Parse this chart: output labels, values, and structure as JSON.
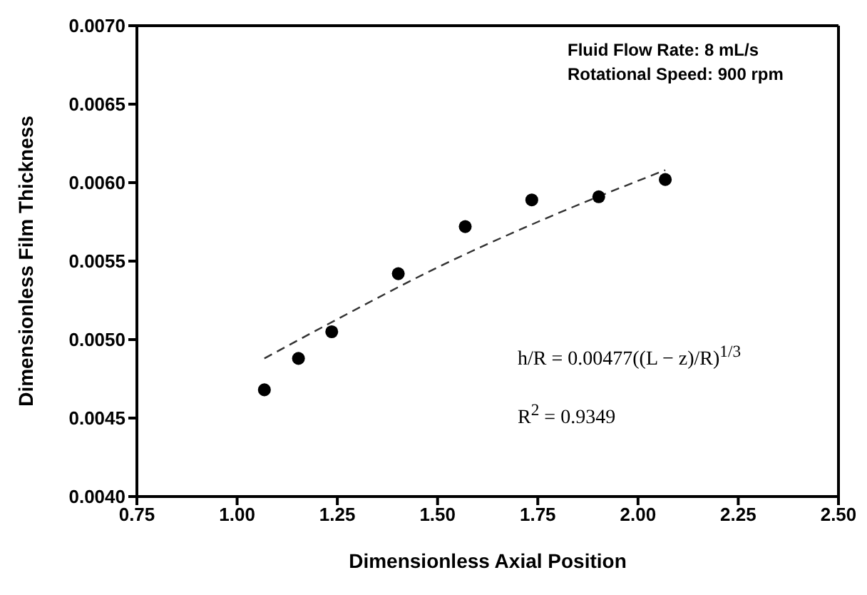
{
  "chart_data": {
    "type": "scatter",
    "xlabel": "Dimensionless Axial Position",
    "ylabel": "Dimensionless Film Thickness",
    "xlim": [
      0.75,
      2.5
    ],
    "xticks": [
      {
        "value": 0.75,
        "label": "0.75"
      },
      {
        "value": 1,
        "label": "1.00"
      },
      {
        "value": 1.25,
        "label": "1.25"
      },
      {
        "value": 1.5,
        "label": "1.50"
      },
      {
        "value": 1.75,
        "label": "1.75"
      },
      {
        "value": 2,
        "label": "2.00"
      },
      {
        "value": 2.25,
        "label": "2.25"
      },
      {
        "value": 2.5,
        "label": "2.50"
      }
    ],
    "ylim": [
      0.004,
      0.007
    ],
    "yticks": [
      {
        "value": 0.004,
        "label": "0.0040"
      },
      {
        "value": 0.0045,
        "label": "0.0045"
      },
      {
        "value": 0.005,
        "label": "0.0050"
      },
      {
        "value": 0.0055,
        "label": "0.0055"
      },
      {
        "value": 0.006,
        "label": "0.0060"
      },
      {
        "value": 0.0065,
        "label": "0.0065"
      },
      {
        "value": 0.007,
        "label": "0.0070"
      }
    ],
    "grid": false,
    "legend": false,
    "marker": "circle",
    "series": [
      {
        "color": "#000000",
        "x": [
          1.068,
          1.153,
          1.236,
          1.402,
          1.569,
          1.735,
          1.902,
          2.068
        ],
        "values": [
          0.00468,
          0.00488,
          0.00505,
          0.00542,
          0.00572,
          0.00589,
          0.00591,
          0.00602
        ]
      },
      {
        "type": "line",
        "color": "#333333",
        "line_style": "dashed",
        "marker": "none",
        "x": [
          1.068,
          1.25,
          1.5,
          1.75,
          2.068
        ],
        "values": [
          0.00488,
          0.00513,
          0.00546,
          0.00575,
          0.00608
        ]
      }
    ],
    "annotations": [
      "Fluid Flow Rate: 8 mL/s",
      "Rotational Speed: 900 rpm",
      "h/R = 0.00477((L − z)/R)$^{1/3}$",
      "R$^{2}$ = 0.9349"
    ]
  }
}
